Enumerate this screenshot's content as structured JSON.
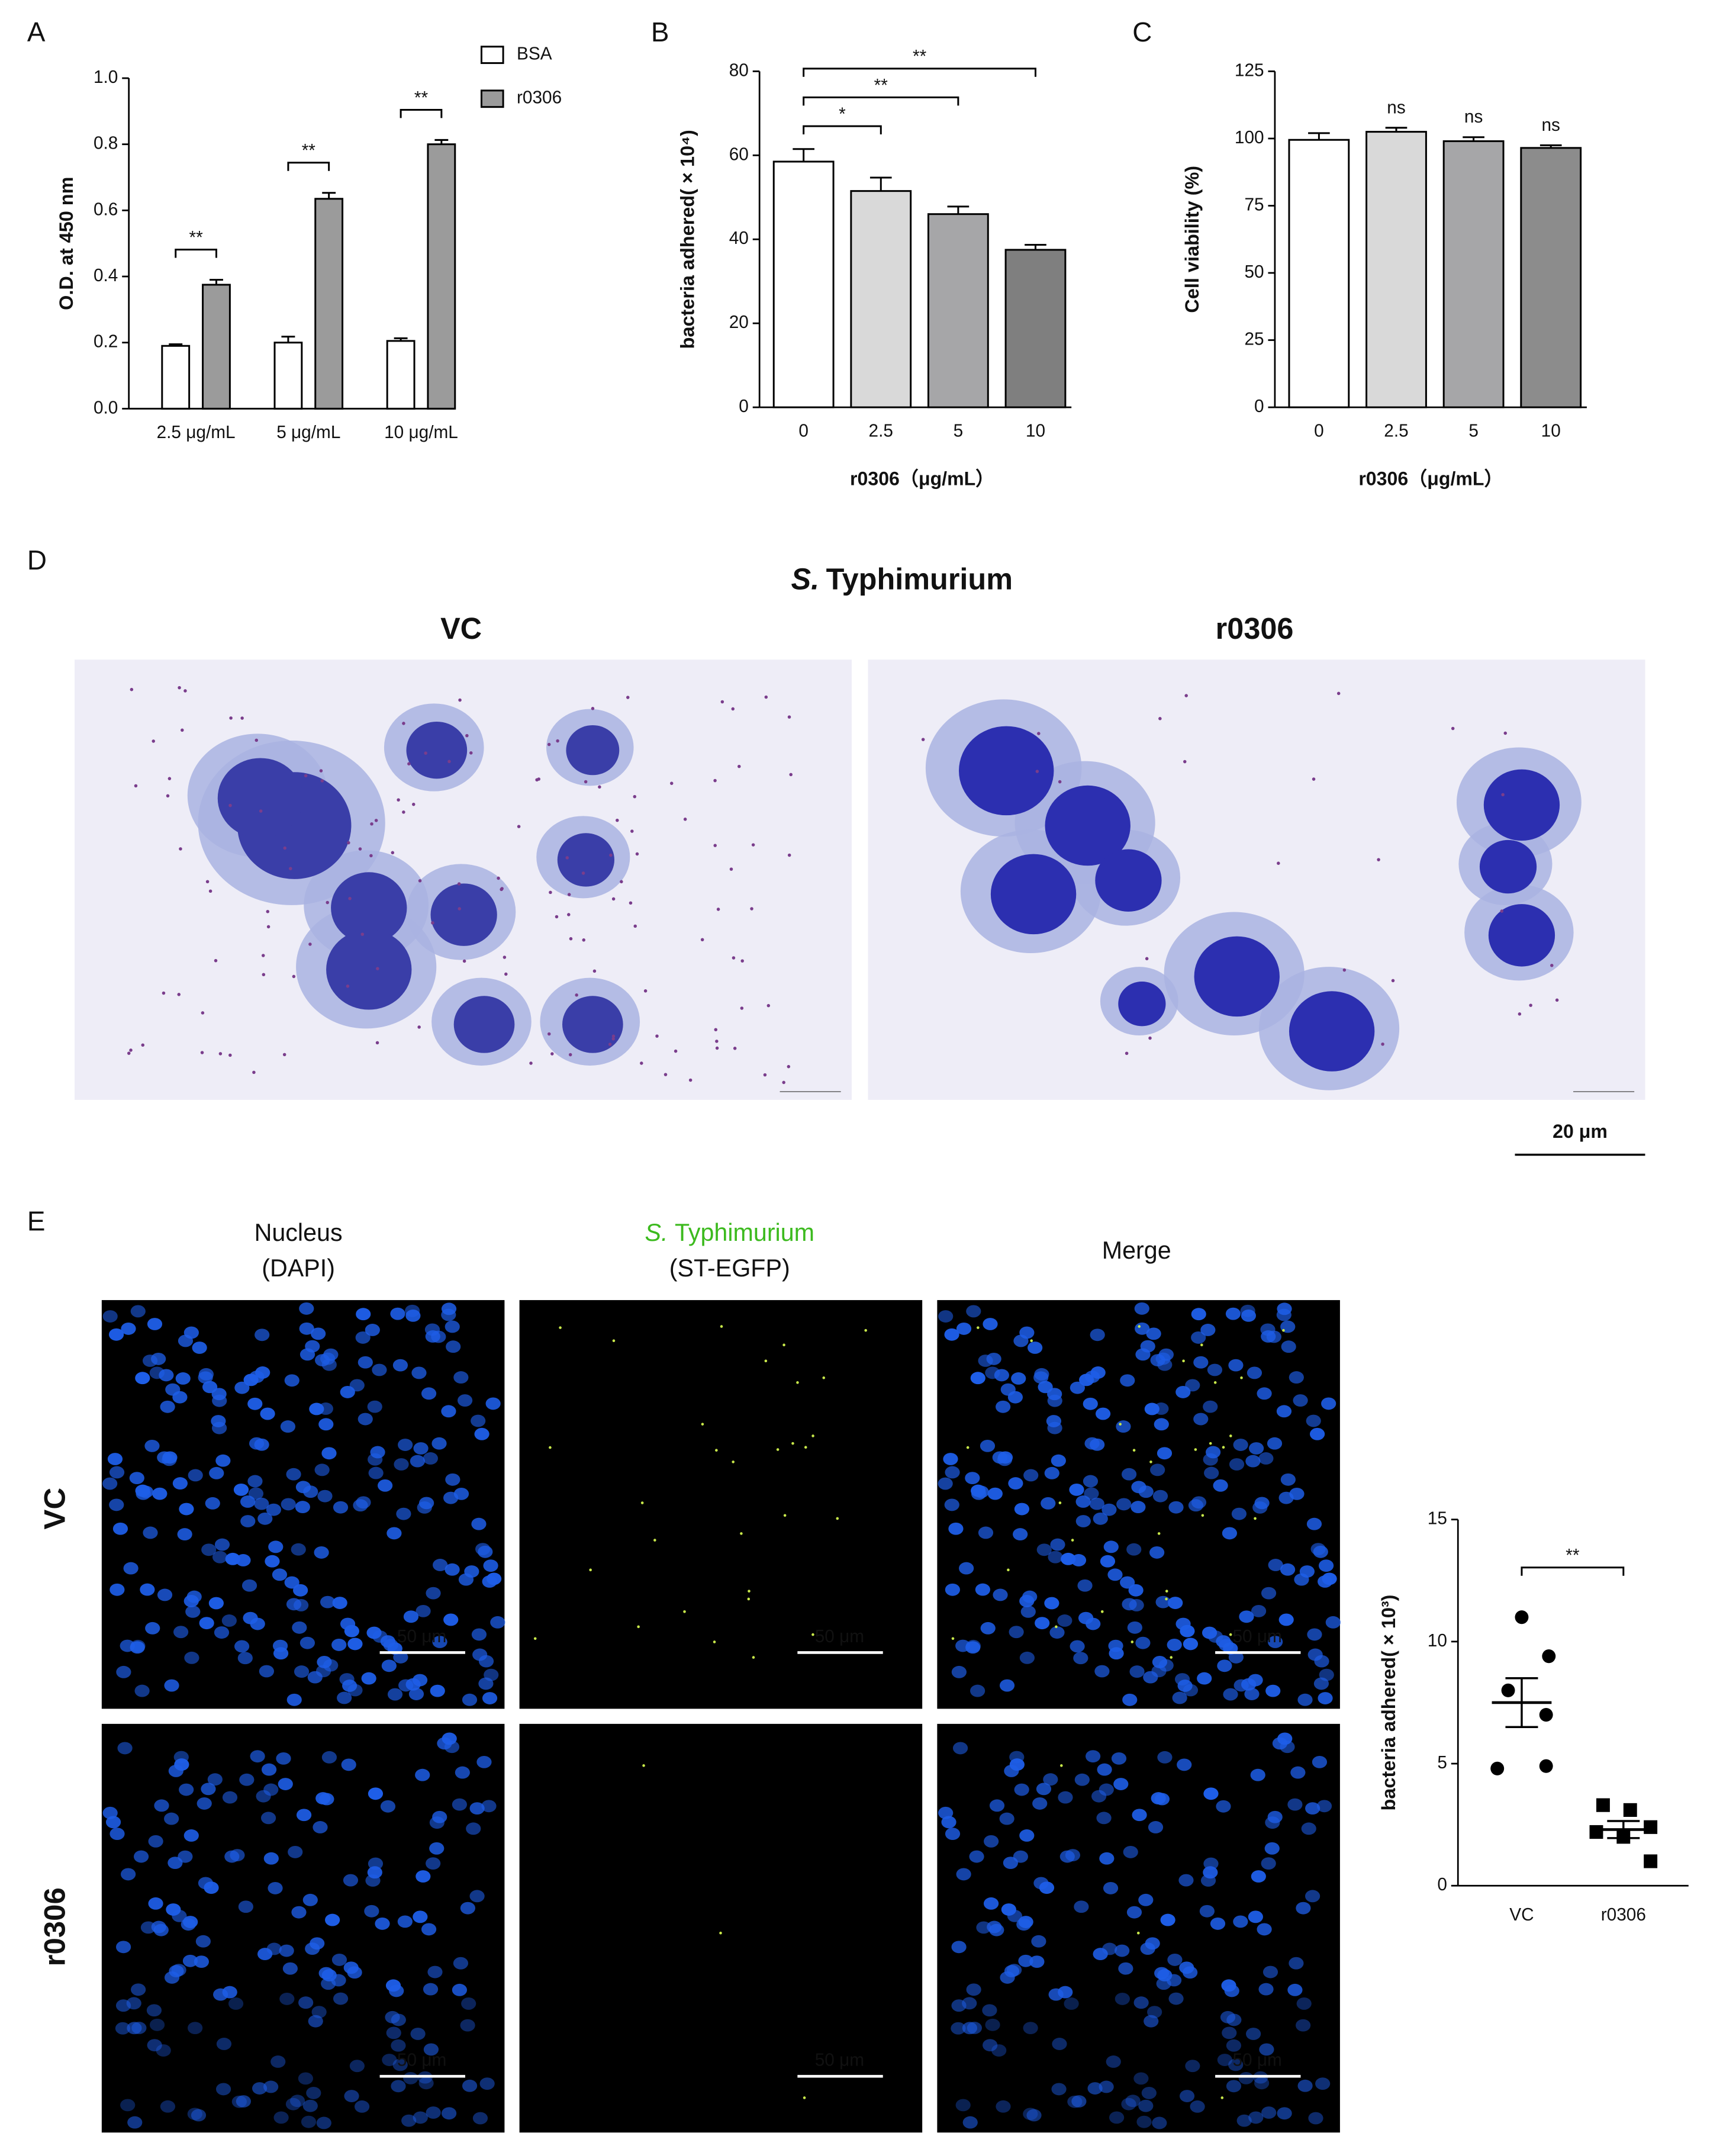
{
  "figure": {
    "panel_labels": [
      "A",
      "B",
      "C",
      "D",
      "E"
    ],
    "d": {
      "title_italic": "S.",
      "title_rest": "Typhimurium",
      "columns": [
        "VC",
        "r0306"
      ],
      "scale_bar": "20 μm"
    },
    "e": {
      "columns": [
        {
          "line1": "Nucleus",
          "line2": "(DAPI)"
        },
        {
          "line1_italic": "S.",
          "line1_rest": "Typhimurium",
          "line2": "(ST-EGFP)"
        },
        {
          "line1": "Merge"
        }
      ],
      "rows": [
        "VC",
        "r0306"
      ],
      "scale_bar": "50 μm"
    }
  },
  "chart_data": [
    {
      "type": "bar",
      "ylabel": "O.D. at 450 nm",
      "categories": [
        "2.5 μg/mL",
        "5 μg/mL",
        "10 μg/mL"
      ],
      "series": [
        {
          "name": "BSA",
          "color": "#ffffff",
          "values": [
            0.19,
            0.2,
            0.205
          ],
          "errors": [
            0.005,
            0.018,
            0.008
          ]
        },
        {
          "name": "r0306",
          "color": "#9b9b9b",
          "values": [
            0.375,
            0.635,
            0.8
          ],
          "errors": [
            0.015,
            0.018,
            0.013
          ]
        }
      ],
      "annotations": [
        "**",
        "**",
        "**"
      ],
      "ylim": [
        0,
        1
      ],
      "yticks": [
        {
          "value": 0,
          "label": "0.0"
        },
        0.2,
        0.4,
        0.6,
        0.8,
        {
          "value": 1,
          "label": "1.0"
        }
      ],
      "legend": "top-right"
    },
    {
      "type": "bar",
      "ylabel": "bacteria adhered( × 10⁴)",
      "xlabel": "r0306（μg/mL）",
      "categories": [
        "0",
        "2.5",
        "5",
        "10"
      ],
      "values": [
        58.5,
        51.5,
        46,
        37.5
      ],
      "errors": [
        3,
        3.2,
        1.8,
        1.2
      ],
      "colors": [
        "#ffffff",
        "#d9d9d9",
        "#a6a6a8",
        "#7f7f7f"
      ],
      "annotations": [
        "*",
        "**",
        "**"
      ],
      "ylim": [
        0,
        80
      ],
      "yticks": [
        0,
        20,
        40,
        60,
        80
      ]
    },
    {
      "type": "bar",
      "ylabel": "Cell viability (%)",
      "xlabel": "r0306（μg/mL）",
      "categories": [
        "0",
        "2.5",
        "5",
        "10"
      ],
      "values": [
        99.5,
        102.5,
        99,
        96.5
      ],
      "errors": [
        2.5,
        1.5,
        1.5,
        1
      ],
      "colors": [
        "#ffffff",
        "#d9d9d9",
        "#a6a6a8",
        "#8c8c8c"
      ],
      "annotations": [
        "ns",
        "ns",
        "ns"
      ],
      "ylim": [
        0,
        125
      ],
      "yticks": [
        0,
        25,
        50,
        75,
        100,
        125
      ]
    },
    {
      "type": "scatter",
      "ylabel": "bacteria adhered( × 10³)",
      "categories": [
        "VC",
        "r0306"
      ],
      "values": [
        [
          11,
          9.4,
          8,
          7,
          4.8,
          4.9
        ],
        [
          3.3,
          3.1,
          2.4,
          2.2,
          2,
          1
        ]
      ],
      "means": [
        7.5,
        2.3
      ],
      "errors": [
        1,
        0.35
      ],
      "markers": [
        "circle",
        "square"
      ],
      "color": "#000000",
      "annotations": [
        "**"
      ],
      "ylim": [
        0,
        15
      ],
      "yticks": [
        0,
        5,
        10,
        15
      ]
    }
  ]
}
